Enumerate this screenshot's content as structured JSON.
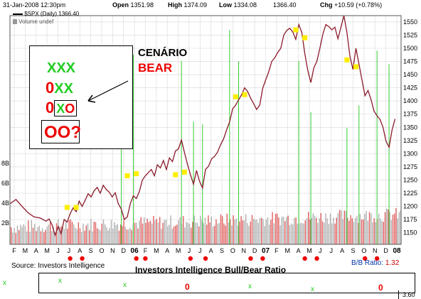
{
  "header": {
    "datetime": "31-Jan-2008 12:30pm",
    "open_label": "Open",
    "open": "1351.98",
    "high_label": "High",
    "high": "1374.09",
    "low_label": "Low",
    "low": "1334.08",
    "last": "1366.40",
    "chg_label": "Chg",
    "chg": "+10.59 (+0.78%)",
    "legend_series": "$SPX (Daily)",
    "legend_value": "1366.40",
    "volume_legend": "Volume undef"
  },
  "annotation": {
    "line1": "XXX",
    "line2_0": "0",
    "line2_x": "XX",
    "line3_0": "0",
    "line3_x": "X",
    "line3_o": "O",
    "line4": "OO?",
    "title1": "CENÁRIO",
    "title2": "BEAR"
  },
  "footer": {
    "source": "Source: Investors Intelligence",
    "ratio_title": "Investors Intelligence Bull/Bear Ratio",
    "bb_label": "B/B Ratio:",
    "bb_value": "1.32",
    "bottom_axis_value": "3.60",
    "row_marks": [
      "x",
      "x",
      "x",
      "0",
      "x",
      "x",
      "0"
    ]
  },
  "colors": {
    "price_line": "#8b1a2a",
    "marker": "#ffee00",
    "signal_line": "#33cc33",
    "volume_bar": "#b0b0b0",
    "volume_bar_red": "#e06060",
    "dot": "#ee0000",
    "x_green": "#22cc22",
    "o_red": "#ee0000",
    "grid": "#d8d8d8"
  },
  "chart_data": {
    "type": "line",
    "title": "$SPX (Daily)",
    "ylim": [
      1128,
      1562
    ],
    "yticks": [
      1150,
      1175,
      1200,
      1225,
      1250,
      1275,
      1300,
      1325,
      1350,
      1375,
      1400,
      1425,
      1450,
      1475,
      1500,
      1525,
      1550
    ],
    "volume_ticks": [
      "2B",
      "4B",
      "6B",
      "8B"
    ],
    "x_ticks": [
      "F",
      "M",
      "A",
      "M",
      "J",
      "J",
      "A",
      "S",
      "O",
      "N",
      "D",
      "06",
      "F",
      "M",
      "A",
      "M",
      "J",
      "J",
      "A",
      "S",
      "O",
      "N",
      "D",
      "07",
      "F",
      "M",
      "A",
      "M",
      "J",
      "J",
      "A",
      "S",
      "O",
      "N",
      "D",
      "08"
    ],
    "price_path": [
      [
        0,
        1205
      ],
      [
        2,
        1213
      ],
      [
        4,
        1200
      ],
      [
        6,
        1188
      ],
      [
        8,
        1180
      ],
      [
        10,
        1178
      ],
      [
        12,
        1172
      ],
      [
        13,
        1176
      ],
      [
        14,
        1165
      ],
      [
        15,
        1145
      ],
      [
        16,
        1162
      ],
      [
        17,
        1148
      ],
      [
        18,
        1175
      ],
      [
        19,
        1170
      ],
      [
        20,
        1186
      ],
      [
        21,
        1197
      ],
      [
        22,
        1190
      ],
      [
        23,
        1210
      ],
      [
        24,
        1200
      ],
      [
        25,
        1212
      ],
      [
        26,
        1224
      ],
      [
        27,
        1218
      ],
      [
        28,
        1230
      ],
      [
        29,
        1236
      ],
      [
        30,
        1225
      ],
      [
        31,
        1240
      ],
      [
        32,
        1232
      ],
      [
        33,
        1227
      ],
      [
        34,
        1218
      ],
      [
        35,
        1226
      ],
      [
        36,
        1205
      ],
      [
        37,
        1195
      ],
      [
        38,
        1175
      ],
      [
        39,
        1180
      ],
      [
        40,
        1205
      ],
      [
        41,
        1220
      ],
      [
        42,
        1215
      ],
      [
        43,
        1228
      ],
      [
        44,
        1250
      ],
      [
        45,
        1258
      ],
      [
        46,
        1264
      ],
      [
        47,
        1270
      ],
      [
        48,
        1258
      ],
      [
        49,
        1279
      ],
      [
        50,
        1273
      ],
      [
        51,
        1287
      ],
      [
        52,
        1270
      ],
      [
        53,
        1292
      ],
      [
        54,
        1285
      ],
      [
        55,
        1305
      ],
      [
        56,
        1309
      ],
      [
        57,
        1326
      ],
      [
        58,
        1302
      ],
      [
        59,
        1280
      ],
      [
        60,
        1260
      ],
      [
        61,
        1242
      ],
      [
        62,
        1268
      ],
      [
        63,
        1248
      ],
      [
        64,
        1235
      ],
      [
        65,
        1270
      ],
      [
        66,
        1276
      ],
      [
        67,
        1290
      ],
      [
        68,
        1295
      ],
      [
        69,
        1303
      ],
      [
        70,
        1317
      ],
      [
        71,
        1328
      ],
      [
        72,
        1345
      ],
      [
        73,
        1360
      ],
      [
        74,
        1385
      ],
      [
        75,
        1392
      ],
      [
        76,
        1402
      ],
      [
        77,
        1412
      ],
      [
        78,
        1425
      ],
      [
        79,
        1418
      ],
      [
        80,
        1405
      ],
      [
        81,
        1395
      ],
      [
        82,
        1384
      ],
      [
        83,
        1392
      ],
      [
        84,
        1424
      ],
      [
        85,
        1440
      ],
      [
        86,
        1455
      ],
      [
        87,
        1475
      ],
      [
        88,
        1482
      ],
      [
        89,
        1492
      ],
      [
        90,
        1500
      ],
      [
        91,
        1525
      ],
      [
        92,
        1534
      ],
      [
        93,
        1538
      ],
      [
        94,
        1531
      ],
      [
        95,
        1517
      ],
      [
        96,
        1545
      ],
      [
        97,
        1530
      ],
      [
        98,
        1490
      ],
      [
        99,
        1458
      ],
      [
        100,
        1435
      ],
      [
        101,
        1463
      ],
      [
        102,
        1475
      ],
      [
        103,
        1500
      ],
      [
        104,
        1527
      ],
      [
        105,
        1545
      ],
      [
        106,
        1541
      ],
      [
        107,
        1535
      ],
      [
        108,
        1540
      ],
      [
        109,
        1518
      ],
      [
        110,
        1540
      ],
      [
        111,
        1562
      ],
      [
        112,
        1530
      ],
      [
        113,
        1485
      ],
      [
        114,
        1460
      ],
      [
        115,
        1500
      ],
      [
        116,
        1470
      ],
      [
        117,
        1440
      ],
      [
        118,
        1410
      ],
      [
        119,
        1420
      ],
      [
        120,
        1403
      ],
      [
        121,
        1381
      ],
      [
        122,
        1372
      ],
      [
        123,
        1365
      ],
      [
        124,
        1350
      ],
      [
        125,
        1324
      ],
      [
        126,
        1312
      ],
      [
        127,
        1345
      ],
      [
        128,
        1366
      ]
    ],
    "marker_points": [
      [
        19,
        1198
      ],
      [
        22,
        1198
      ],
      [
        39,
        1258
      ],
      [
        42,
        1262
      ],
      [
        55,
        1260
      ],
      [
        58,
        1265
      ],
      [
        75,
        1408
      ],
      [
        78,
        1412
      ],
      [
        95,
        1535
      ],
      [
        98,
        1520
      ],
      [
        112,
        1478
      ],
      [
        115,
        1465
      ]
    ],
    "signal_lines_x": [
      37,
      41,
      57,
      61,
      64,
      73,
      76,
      96,
      100,
      112,
      116,
      122,
      126
    ],
    "dot_x": [
      20,
      24,
      42,
      45,
      60,
      65,
      80,
      84,
      98,
      102,
      118,
      122
    ],
    "x_span": [
      0,
      130
    ]
  }
}
